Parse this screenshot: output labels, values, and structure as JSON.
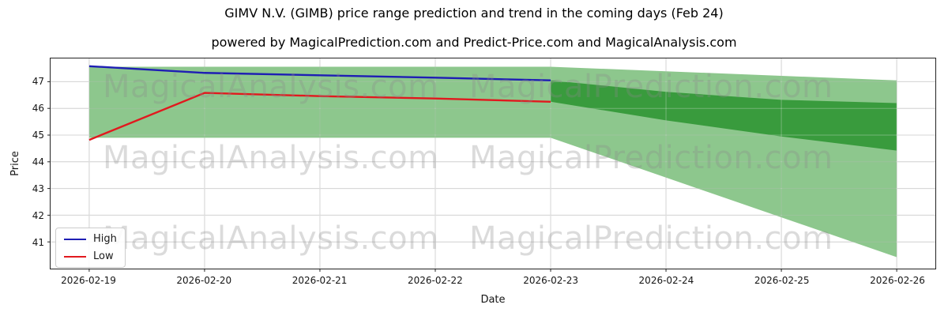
{
  "figure": {
    "title": "GIMV N.V. (GIMB) price range prediction and trend in the coming days (Feb 24)",
    "subtitle": "powered by MagicalPrediction.com and Predict-Price.com and MagicalAnalysis.com"
  },
  "watermarks": {
    "left_text": "MagicalAnalysis.com",
    "right_text": "MagicalPrediction.com"
  },
  "colors": {
    "band_light": "rgba(40,150,40,0.53)",
    "band_dark": "rgba(30,140,35,0.75)",
    "high_line": "#1e1eb4",
    "low_line": "#e1191e",
    "grid": "#c0c0c0",
    "grid_overlay": "rgba(255,255,255,0.32)",
    "spine": "#222222"
  },
  "chart_data": {
    "type": "line",
    "title": "GIMV N.V. (GIMB) price range prediction and trend in the coming days (Feb 24)",
    "xlabel": "Date",
    "ylabel": "Price",
    "x": [
      "2026-02-19",
      "2026-02-20",
      "2026-02-21",
      "2026-02-22",
      "2026-02-23",
      "2026-02-24",
      "2026-02-25",
      "2026-02-26"
    ],
    "ylim": [
      40.0,
      47.87
    ],
    "yticks": [
      41,
      42,
      43,
      44,
      45,
      46,
      47
    ],
    "grid": true,
    "legend_position": "lower left",
    "series": [
      {
        "name": "High",
        "color": "#1e1eb4",
        "x": [
          "2026-02-19",
          "2026-02-20",
          "2026-02-21",
          "2026-02-22",
          "2026-02-23"
        ],
        "values": [
          47.58,
          47.33,
          47.24,
          47.15,
          47.05
        ]
      },
      {
        "name": "Low",
        "color": "#e1191e",
        "x": [
          "2026-02-19",
          "2026-02-20",
          "2026-02-21",
          "2026-02-22",
          "2026-02-23"
        ],
        "values": [
          44.82,
          46.58,
          46.46,
          46.37,
          46.25
        ]
      }
    ],
    "bands": [
      {
        "name": "historical-range",
        "style": "light",
        "x": [
          "2026-02-19",
          "2026-02-23"
        ],
        "top": [
          47.56,
          47.56
        ],
        "bottom": [
          44.9,
          44.9
        ]
      },
      {
        "name": "forecast-outer-range",
        "style": "light",
        "x": [
          "2026-02-23",
          "2026-02-24",
          "2026-02-25",
          "2026-02-26"
        ],
        "top": [
          47.56,
          47.39,
          47.22,
          47.05
        ],
        "bottom": [
          44.9,
          43.41,
          41.92,
          40.43
        ]
      },
      {
        "name": "forecast-inner-range",
        "style": "dark",
        "x": [
          "2026-02-23",
          "2026-02-24",
          "2026-02-25",
          "2026-02-26"
        ],
        "top": [
          47.05,
          46.62,
          46.32,
          46.2
        ],
        "bottom": [
          46.25,
          45.55,
          44.95,
          44.42
        ]
      }
    ]
  }
}
